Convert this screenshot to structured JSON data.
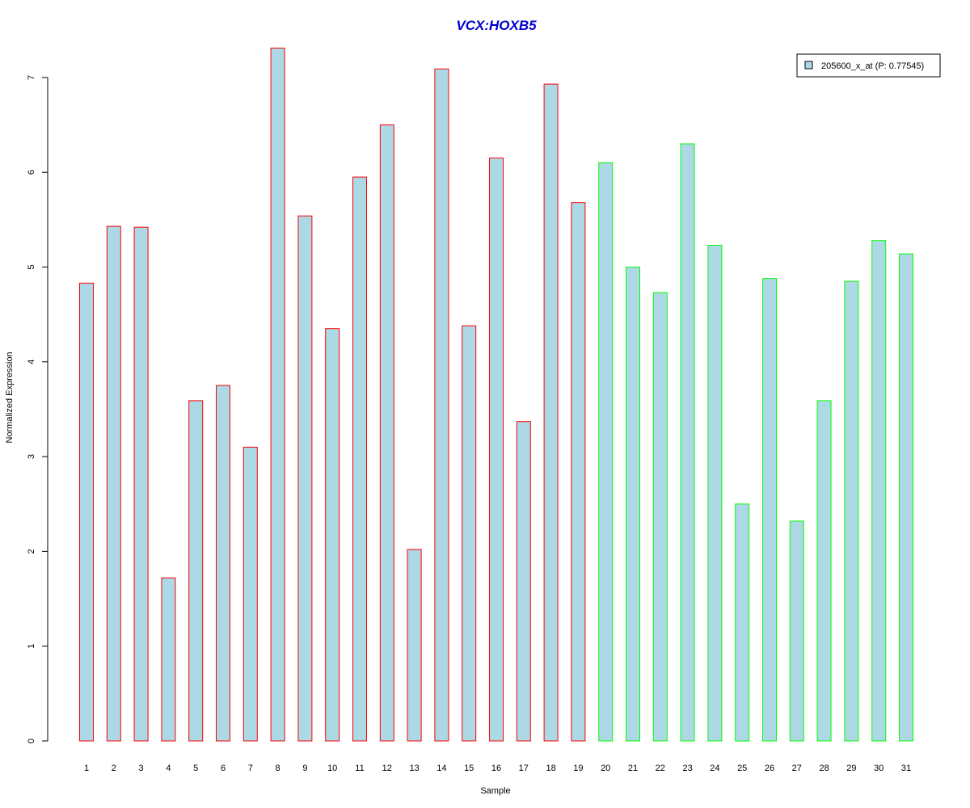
{
  "chart_data": {
    "type": "bar",
    "title": "VCX:HOXB5",
    "xlabel": "Sample",
    "ylabel": "Normalized Expression",
    "ylim": [
      0,
      7.3
    ],
    "yticks": [
      0,
      1,
      2,
      3,
      4,
      5,
      6,
      7
    ],
    "grid": false,
    "legend_position": "top-right",
    "categories": [
      "1",
      "2",
      "3",
      "4",
      "5",
      "6",
      "7",
      "8",
      "9",
      "10",
      "11",
      "12",
      "13",
      "14",
      "15",
      "16",
      "17",
      "18",
      "19",
      "20",
      "21",
      "22",
      "23",
      "24",
      "25",
      "26",
      "27",
      "28",
      "29",
      "30",
      "31"
    ],
    "series": [
      {
        "name": "205600_x_at (P: 0.77545)",
        "values": [
          4.83,
          5.43,
          5.42,
          1.72,
          3.59,
          3.75,
          3.1,
          7.31,
          5.54,
          4.35,
          5.95,
          6.5,
          2.02,
          7.09,
          4.38,
          6.15,
          3.37,
          6.93,
          5.68,
          6.1,
          5.0,
          4.73,
          6.3,
          5.23,
          2.5,
          4.88,
          2.32,
          3.59,
          4.85,
          5.28,
          5.14
        ]
      }
    ],
    "groups": [
      "red",
      "red",
      "red",
      "red",
      "red",
      "red",
      "red",
      "red",
      "red",
      "red",
      "red",
      "red",
      "red",
      "red",
      "red",
      "red",
      "red",
      "red",
      "red",
      "green",
      "green",
      "green",
      "green",
      "green",
      "green",
      "green",
      "green",
      "green",
      "green",
      "green",
      "green"
    ],
    "colors": {
      "fill": "#add8e6",
      "red": "#ff0000",
      "green": "#00ff00",
      "title": "#0000cc",
      "axis": "#000000"
    }
  }
}
